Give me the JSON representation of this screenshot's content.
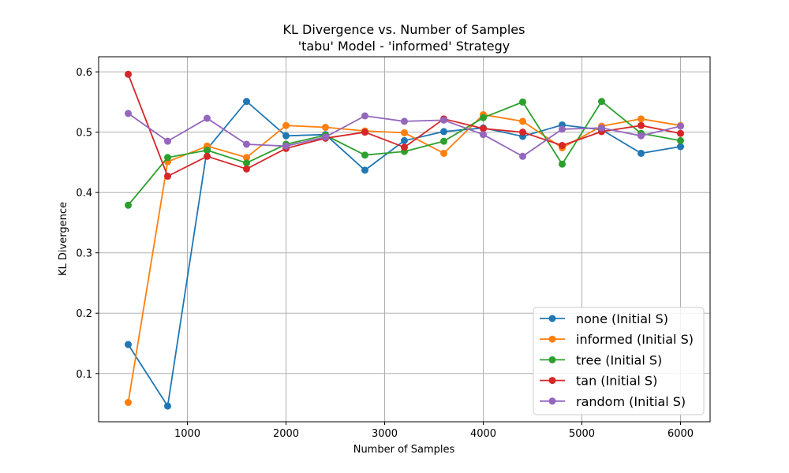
{
  "chart_data": {
    "type": "line",
    "title": "KL Divergence vs. Number of Samples",
    "subtitle": "'tabu' Model - 'informed' Strategy",
    "xlabel": "Number of Samples",
    "ylabel": "KL Divergence",
    "xlim": [
      100,
      6300
    ],
    "ylim": [
      0.02,
      0.625
    ],
    "xticks": [
      1000,
      2000,
      3000,
      4000,
      5000,
      6000
    ],
    "yticks": [
      0.1,
      0.2,
      0.3,
      0.4,
      0.5,
      0.6
    ],
    "grid": true,
    "legend_position": "lower-right",
    "x": [
      400,
      800,
      1200,
      1600,
      2000,
      2400,
      2800,
      3200,
      3600,
      4000,
      4400,
      4800,
      5200,
      5600,
      6000
    ],
    "series": [
      {
        "name": "none (Initial S)",
        "color": "#1f77b4",
        "values": [
          0.148,
          0.046,
          0.472,
          0.551,
          0.494,
          0.496,
          0.437,
          0.486,
          0.501,
          0.507,
          0.493,
          0.512,
          0.504,
          0.465,
          0.476
        ]
      },
      {
        "name": "informed (Initial S)",
        "color": "#ff7f0e",
        "values": [
          0.052,
          0.451,
          0.477,
          0.458,
          0.511,
          0.508,
          0.502,
          0.499,
          0.465,
          0.529,
          0.518,
          0.474,
          0.51,
          0.522,
          0.511
        ]
      },
      {
        "name": "tree (Initial S)",
        "color": "#2ca02c",
        "values": [
          0.379,
          0.458,
          0.47,
          0.449,
          0.48,
          0.495,
          0.462,
          0.468,
          0.485,
          0.524,
          0.55,
          0.447,
          0.551,
          0.498,
          0.486
        ]
      },
      {
        "name": "tan (Initial S)",
        "color": "#d62728",
        "values": [
          0.596,
          0.427,
          0.46,
          0.439,
          0.473,
          0.49,
          0.5,
          0.475,
          0.522,
          0.506,
          0.5,
          0.478,
          0.501,
          0.511,
          0.498
        ]
      },
      {
        "name": "random (Initial S)",
        "color": "#9467bd",
        "values": [
          0.531,
          0.485,
          0.523,
          0.48,
          0.477,
          0.492,
          0.527,
          0.518,
          0.52,
          0.496,
          0.46,
          0.505,
          0.507,
          0.494,
          0.51
        ]
      }
    ]
  }
}
